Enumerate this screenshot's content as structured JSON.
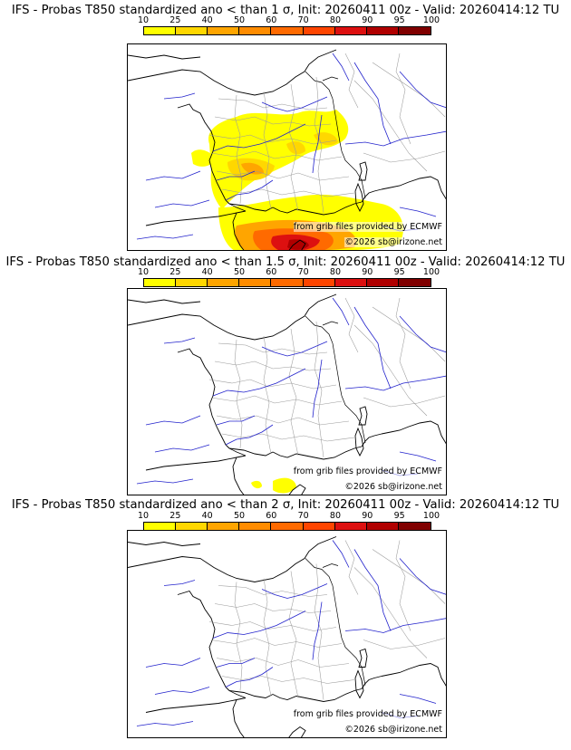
{
  "colorbar": {
    "ticks": [
      "10",
      "25",
      "40",
      "50",
      "60",
      "70",
      "80",
      "90",
      "95",
      "100"
    ],
    "colors": [
      "#ffff00",
      "#ffd700",
      "#ffa500",
      "#ff8c00",
      "#ff6a00",
      "#ff4500",
      "#dd1010",
      "#b00000",
      "#800000"
    ]
  },
  "map_colors": {
    "coast": "#000000",
    "rivers": "#2222cc",
    "borders": "#9a9a9a"
  },
  "panels": [
    {
      "title": "IFS - Probas T850  standardized ano < than 1 σ, Init: 20260411 00z - Valid: 20260414:12 TU",
      "threshold_sigma": 1,
      "credit_source": "from grib files provided by ECMWF",
      "credit_copyright": "©2026 sb@irizone.net"
    },
    {
      "title": "IFS - Probas T850  standardized ano < than 1.5 σ, Init: 20260411 00z - Valid: 20260414:12 TU",
      "threshold_sigma": 1.5,
      "credit_source": "from grib files provided by ECMWF",
      "credit_copyright": "©2026 sb@irizone.net"
    },
    {
      "title": "IFS - Probas T850  standardized ano < than 2 σ, Init: 20260411 00z - Valid: 20260414:12 TU",
      "threshold_sigma": 2,
      "credit_source": "from grib files provided by ECMWF",
      "credit_copyright": "©2026 sb@irizone.net"
    }
  ]
}
